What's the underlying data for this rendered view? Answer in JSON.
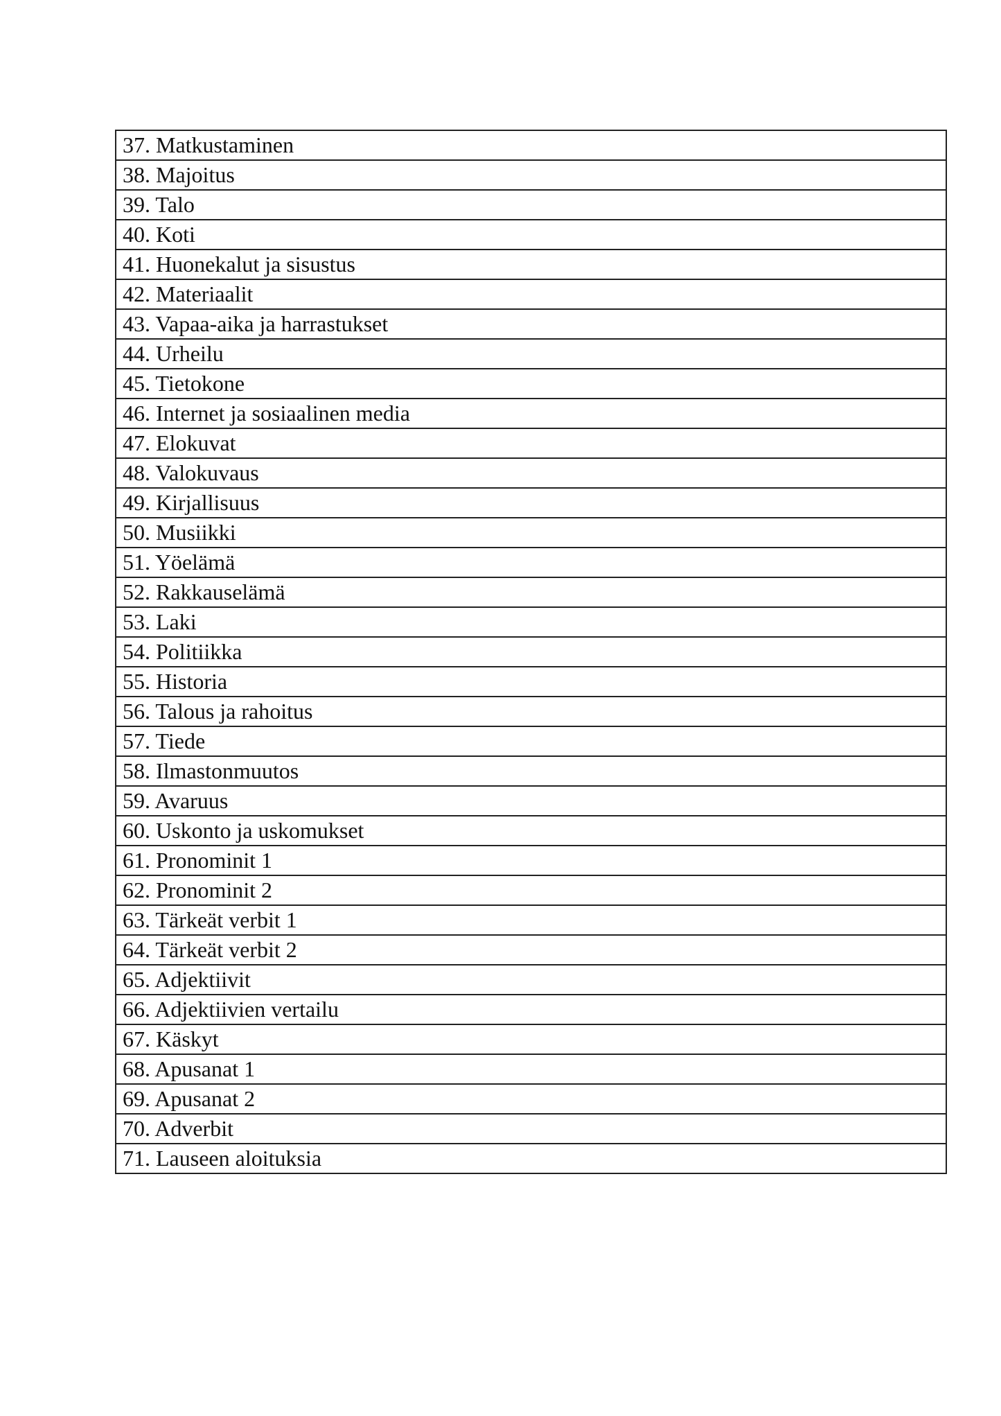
{
  "items": [
    "37. Matkustaminen",
    "38. Majoitus",
    "39. Talo",
    "40. Koti",
    "41. Huonekalut ja sisustus",
    "42. Materiaalit",
    "43. Vapaa-aika ja harrastukset",
    "44. Urheilu",
    "45. Tietokone",
    "46. Internet ja sosiaalinen media",
    "47. Elokuvat",
    "48. Valokuvaus",
    "49. Kirjallisuus",
    "50. Musiikki",
    "51. Yöelämä",
    "52. Rakkauselämä",
    "53. Laki",
    "54. Politiikka",
    "55. Historia",
    "56. Talous ja rahoitus",
    "57. Tiede",
    "58. Ilmastonmuutos",
    "59. Avaruus",
    "60. Uskonto ja uskomukset",
    "61. Pronominit 1",
    "62. Pronominit 2",
    "63. Tärkeät verbit 1",
    "64. Tärkeät verbit 2",
    "65. Adjektiivit",
    "66. Adjektiivien vertailu",
    "67. Käskyt",
    "68. Apusanat 1",
    "69. Apusanat 2",
    "70. Adverbit",
    "71. Lauseen aloituksia"
  ]
}
